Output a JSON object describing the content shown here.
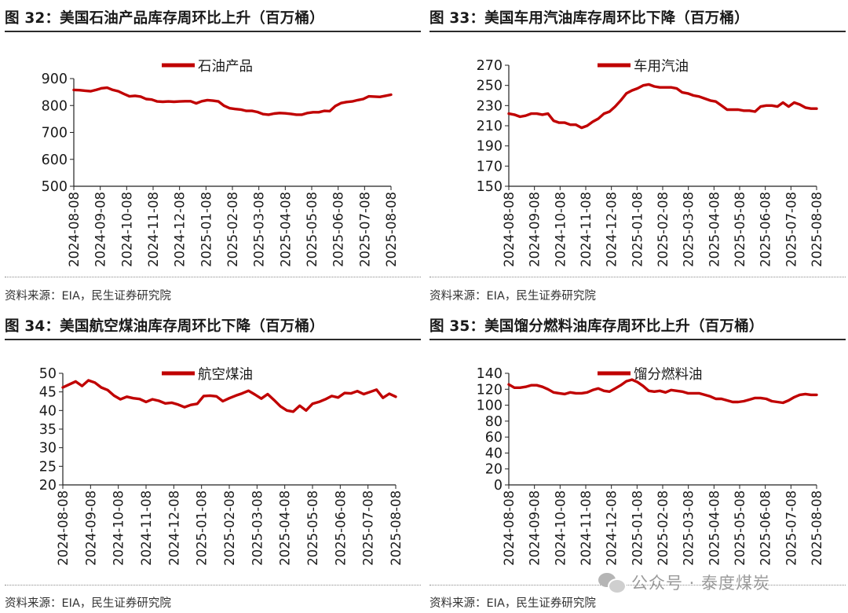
{
  "source_text": "资料来源：EIA，民生证券研究院",
  "watermark": {
    "text": "公众号 · 泰度煤炭",
    "icon": "wechat-icon"
  },
  "line_color": "#c00000",
  "chart_data": [
    {
      "type": "line",
      "title": "图 32：美国石油产品库存周环比上升（百万桶）",
      "series": [
        {
          "name": "石油产品",
          "values": [
            858,
            857,
            855,
            853,
            858,
            864,
            866,
            858,
            853,
            843,
            834,
            836,
            833,
            824,
            822,
            815,
            814,
            815,
            814,
            815,
            816,
            816,
            808,
            816,
            820,
            818,
            815,
            799,
            790,
            787,
            785,
            780,
            780,
            776,
            768,
            766,
            770,
            772,
            771,
            769,
            766,
            766,
            772,
            775,
            775,
            780,
            779,
            798,
            809,
            813,
            815,
            820,
            824,
            834,
            833,
            832,
            836,
            840
          ]
        }
      ],
      "xlabels": [
        "2024-08-08",
        "2024-09-08",
        "2024-10-08",
        "2024-11-08",
        "2024-12-08",
        "2025-01-08",
        "2025-02-08",
        "2025-03-08",
        "2025-04-08",
        "2025-05-08",
        "2025-06-08",
        "2025-07-08",
        "2025-08-08"
      ],
      "yticks": [
        500,
        600,
        700,
        800,
        900
      ],
      "ylim": [
        500,
        900
      ]
    },
    {
      "type": "line",
      "title": "图 33：美国车用汽油库存周环比下降（百万桶）",
      "series": [
        {
          "name": "车用汽油",
          "values": [
            222,
            221,
            219,
            220,
            222,
            222,
            221,
            222,
            215,
            213,
            213,
            211,
            211,
            208,
            210,
            214,
            217,
            222,
            224,
            229,
            235,
            242,
            245,
            247,
            250,
            251,
            249,
            248,
            248,
            248,
            247,
            243,
            242,
            240,
            239,
            237,
            235,
            234,
            230,
            226,
            226,
            226,
            225,
            225,
            224,
            229,
            230,
            230,
            229,
            233,
            229,
            233,
            231,
            228,
            227,
            227
          ]
        }
      ],
      "xlabels": [
        "2024-08-08",
        "2024-09-08",
        "2024-10-08",
        "2024-11-08",
        "2024-12-08",
        "2025-01-08",
        "2025-02-08",
        "2025-03-08",
        "2025-04-08",
        "2025-05-08",
        "2025-06-08",
        "2025-07-08",
        "2025-08-08"
      ],
      "yticks": [
        150,
        170,
        190,
        210,
        230,
        250,
        270
      ],
      "ylim": [
        150,
        270
      ]
    },
    {
      "type": "line",
      "title": "图 34：美国航空煤油库存周环比下降（百万桶）",
      "series": [
        {
          "name": "航空煤油",
          "values": [
            46.2,
            47,
            47.8,
            46.6,
            48.1,
            47.5,
            46.2,
            45.5,
            44,
            43,
            43.7,
            43.3,
            43.1,
            42.3,
            43,
            42.6,
            41.9,
            42.1,
            41.6,
            40.9,
            41.5,
            41.8,
            43.9,
            44,
            43.8,
            42.5,
            43.3,
            44,
            44.6,
            45.3,
            44.3,
            43.2,
            44.4,
            42.8,
            41.1,
            40,
            39.7,
            41.3,
            40,
            41.8,
            42.3,
            43,
            43.9,
            43.5,
            44.7,
            44.6,
            45.2,
            44.4,
            45,
            45.6,
            43.4,
            44.5,
            43.7
          ]
        }
      ],
      "xlabels": [
        "2024-08-08",
        "2024-09-08",
        "2024-10-08",
        "2024-11-08",
        "2024-12-08",
        "2025-01-08",
        "2025-02-08",
        "2025-03-08",
        "2025-04-08",
        "2025-05-08",
        "2025-06-08",
        "2025-07-08",
        "2025-08-08"
      ],
      "yticks": [
        20,
        25,
        30,
        35,
        40,
        45,
        50
      ],
      "ylim": [
        20,
        50
      ]
    },
    {
      "type": "line",
      "title": "图 35：美国馏分燃料油库存周环比上升（百万桶）",
      "series": [
        {
          "name": "馏分燃料油",
          "values": [
            126,
            122,
            122,
            123,
            125,
            125,
            123,
            120,
            116,
            115,
            114,
            116,
            115,
            115,
            116,
            119,
            121,
            118,
            117,
            121,
            125,
            130,
            132,
            129,
            124,
            118,
            117,
            118,
            116,
            119,
            118,
            117,
            115,
            115,
            115,
            113,
            111,
            108,
            108,
            106,
            104,
            104,
            105,
            107,
            109,
            109,
            108,
            105,
            104,
            103,
            106,
            110,
            113,
            114,
            113,
            113
          ]
        }
      ],
      "xlabels": [
        "2024-08-08",
        "2024-09-08",
        "2024-10-08",
        "2024-11-08",
        "2024-12-08",
        "2025-01-08",
        "2025-02-08",
        "2025-03-08",
        "2025-04-08",
        "2025-05-08",
        "2025-06-08",
        "2025-07-08",
        "2025-08-08"
      ],
      "yticks": [
        0,
        20,
        40,
        60,
        80,
        100,
        120,
        140
      ],
      "ylim": [
        0,
        140
      ]
    }
  ]
}
